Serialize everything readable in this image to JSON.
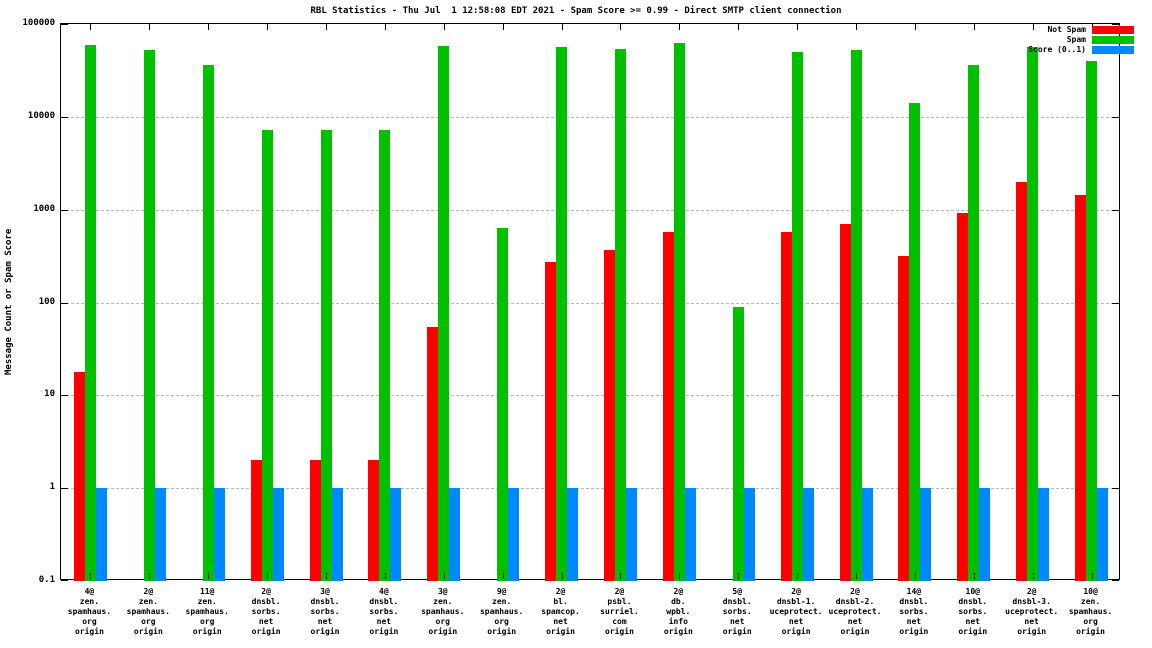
{
  "chart_data": {
    "type": "bar",
    "scale": "log",
    "title": "RBL Statistics - Thu Jul  1 12:58:08 EDT 2021 - Spam Score >= 0.99 - Direct SMTP client connection",
    "ylabel": "Message Count or Spam Score",
    "xlabel": "",
    "ylim": [
      0.1,
      100000
    ],
    "grid": "dashed-horizontal-at-decades",
    "legend_position": "top-right",
    "y_ticks": [
      {
        "value": 100000,
        "label": "100000"
      },
      {
        "value": 10000,
        "label": "10000"
      },
      {
        "value": 1000,
        "label": "1000"
      },
      {
        "value": 100,
        "label": "100"
      },
      {
        "value": 10,
        "label": "10"
      },
      {
        "value": 1,
        "label": "1"
      },
      {
        "value": 0.1,
        "label": "0.1"
      }
    ],
    "categories": [
      [
        "4@",
        "zen.",
        "spamhaus.",
        "org",
        "origin"
      ],
      [
        "2@",
        "zen.",
        "spamhaus.",
        "org",
        "origin"
      ],
      [
        "11@",
        "zen.",
        "spamhaus.",
        "org",
        "origin"
      ],
      [
        "2@",
        "dnsbl.",
        "sorbs.",
        "net",
        "origin"
      ],
      [
        "3@",
        "dnsbl.",
        "sorbs.",
        "net",
        "origin"
      ],
      [
        "4@",
        "dnsbl.",
        "sorbs.",
        "net",
        "origin"
      ],
      [
        "3@",
        "zen.",
        "spamhaus.",
        "org",
        "origin"
      ],
      [
        "9@",
        "zen.",
        "spamhaus.",
        "org",
        "origin"
      ],
      [
        "2@",
        "bl.",
        "spamcop.",
        "net",
        "origin"
      ],
      [
        "2@",
        "psbl.",
        "surriel.",
        "com",
        "origin"
      ],
      [
        "2@",
        "db.",
        "wpbl.",
        "info",
        "origin"
      ],
      [
        "5@",
        "dnsbl.",
        "sorbs.",
        "net",
        "origin"
      ],
      [
        "2@",
        "dnsbl-1.",
        "uceprotect.",
        "net",
        "origin"
      ],
      [
        "2@",
        "dnsbl-2.",
        "uceprotect.",
        "net",
        "origin"
      ],
      [
        "14@",
        "dnsbl.",
        "sorbs.",
        "net",
        "origin"
      ],
      [
        "10@",
        "dnsbl.",
        "sorbs.",
        "net",
        "origin"
      ],
      [
        "2@",
        "dnsbl-3.",
        "uceprotect.",
        "net",
        "origin"
      ],
      [
        "10@",
        "zen.",
        "spamhaus.",
        "org",
        "origin"
      ]
    ],
    "legend": [
      {
        "name": "Not Spam",
        "color": "#ff0000"
      },
      {
        "name": "Spam",
        "color": "#00c000"
      },
      {
        "name": "Score (0..1)",
        "color": "#0088ff"
      }
    ],
    "series": [
      {
        "name": "Not Spam",
        "color": "#ff0000",
        "values": [
          18,
          null,
          null,
          2,
          2,
          2,
          55,
          null,
          270,
          370,
          580,
          null,
          570,
          700,
          320,
          930,
          2000,
          1450
        ]
      },
      {
        "name": "Spam",
        "color": "#00c000",
        "values": [
          60000,
          52000,
          36000,
          7200,
          7200,
          7200,
          58000,
          640,
          57000,
          54000,
          62000,
          90,
          50000,
          53000,
          14000,
          36000,
          57000,
          40000
        ]
      },
      {
        "name": "Score (0..1)",
        "color": "#0088ff",
        "values": [
          1,
          1,
          1,
          1,
          1,
          1,
          1,
          1,
          1,
          1,
          1,
          1,
          1,
          1,
          1,
          1,
          1,
          1
        ]
      }
    ]
  }
}
